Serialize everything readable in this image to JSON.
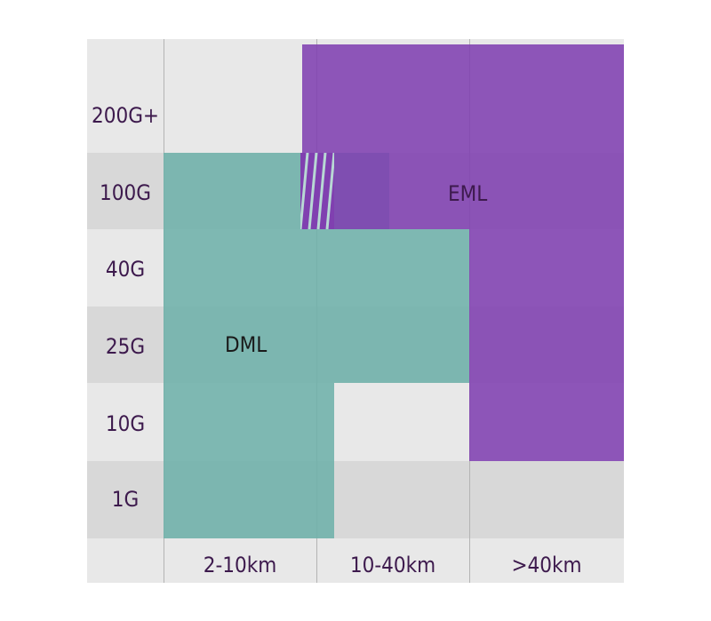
{
  "rows": [
    "200G+",
    "100G",
    "40G",
    "25G",
    "10G",
    "1G"
  ],
  "columns": [
    "2-10km",
    "10-40km",
    ">40km"
  ],
  "regions": {
    "dml": {
      "label": "DML",
      "color": "#6eb0aa"
    },
    "eml": {
      "label": "EML",
      "color": "#8040b0"
    }
  }
}
